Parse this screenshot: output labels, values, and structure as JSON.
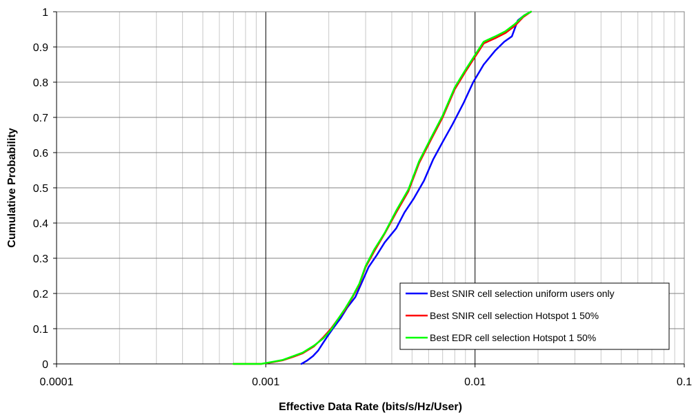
{
  "chart_data": {
    "type": "line",
    "xlabel": "Effective Data Rate (bits/s/Hz/User)",
    "ylabel": "Cumulative Probability",
    "xscale": "log",
    "xlim": [
      0.0001,
      0.1
    ],
    "ylim": [
      0,
      1
    ],
    "x_ticks": [
      "0.0001",
      "0.001",
      "0.01",
      "0.1"
    ],
    "y_ticks": [
      "0",
      "0.1",
      "0.2",
      "0.3",
      "0.4",
      "0.5",
      "0.6",
      "0.7",
      "0.8",
      "0.9",
      "1"
    ],
    "grid": true,
    "legend_position": "bottom-right",
    "series": [
      {
        "name": "Best SNIR cell selection uniform users only",
        "color": "#0000ff",
        "points": [
          [
            0.00148,
            0
          ],
          [
            0.00158,
            0.01
          ],
          [
            0.00168,
            0.022
          ],
          [
            0.00178,
            0.038
          ],
          [
            0.00188,
            0.06
          ],
          [
            0.00198,
            0.08
          ],
          [
            0.00212,
            0.105
          ],
          [
            0.00228,
            0.13
          ],
          [
            0.00245,
            0.16
          ],
          [
            0.00268,
            0.19
          ],
          [
            0.00292,
            0.24
          ],
          [
            0.0031,
            0.275
          ],
          [
            0.0034,
            0.31
          ],
          [
            0.0037,
            0.345
          ],
          [
            0.0042,
            0.385
          ],
          [
            0.0046,
            0.43
          ],
          [
            0.0051,
            0.47
          ],
          [
            0.0057,
            0.52
          ],
          [
            0.0063,
            0.58
          ],
          [
            0.007,
            0.63
          ],
          [
            0.0078,
            0.68
          ],
          [
            0.0088,
            0.74
          ],
          [
            0.0098,
            0.8
          ],
          [
            0.011,
            0.85
          ],
          [
            0.0125,
            0.89
          ],
          [
            0.0138,
            0.915
          ],
          [
            0.015,
            0.93
          ],
          [
            0.016,
            0.975
          ],
          [
            0.0172,
            0.99
          ],
          [
            0.0185,
            1.0
          ]
        ]
      },
      {
        "name": "Best SNIR cell selection Hotspot 1 50%",
        "color": "#ff0000",
        "points": [
          [
            0.0007,
            0
          ],
          [
            0.00095,
            0
          ],
          [
            0.00108,
            0.005
          ],
          [
            0.0012,
            0.01
          ],
          [
            0.00135,
            0.02
          ],
          [
            0.0015,
            0.03
          ],
          [
            0.0017,
            0.05
          ],
          [
            0.00188,
            0.075
          ],
          [
            0.00205,
            0.1
          ],
          [
            0.0022,
            0.125
          ],
          [
            0.0024,
            0.155
          ],
          [
            0.0026,
            0.19
          ],
          [
            0.0028,
            0.225
          ],
          [
            0.003,
            0.275
          ],
          [
            0.0033,
            0.32
          ],
          [
            0.0037,
            0.37
          ],
          [
            0.0042,
            0.43
          ],
          [
            0.0048,
            0.49
          ],
          [
            0.0054,
            0.57
          ],
          [
            0.0062,
            0.64
          ],
          [
            0.007,
            0.7
          ],
          [
            0.008,
            0.78
          ],
          [
            0.009,
            0.83
          ],
          [
            0.0097,
            0.86
          ],
          [
            0.011,
            0.91
          ],
          [
            0.0125,
            0.925
          ],
          [
            0.014,
            0.94
          ],
          [
            0.0155,
            0.96
          ],
          [
            0.017,
            0.985
          ],
          [
            0.0185,
            1.0
          ]
        ]
      },
      {
        "name": "Best EDR cell selection Hotspot 1 50%",
        "color": "#00ff00",
        "points": [
          [
            0.0007,
            0
          ],
          [
            0.00095,
            0
          ],
          [
            0.00108,
            0.006
          ],
          [
            0.0012,
            0.011
          ],
          [
            0.00135,
            0.022
          ],
          [
            0.0015,
            0.032
          ],
          [
            0.0017,
            0.052
          ],
          [
            0.00188,
            0.072
          ],
          [
            0.00205,
            0.097
          ],
          [
            0.0022,
            0.125
          ],
          [
            0.0024,
            0.158
          ],
          [
            0.0026,
            0.192
          ],
          [
            0.0028,
            0.228
          ],
          [
            0.003,
            0.278
          ],
          [
            0.0033,
            0.325
          ],
          [
            0.0037,
            0.372
          ],
          [
            0.0042,
            0.435
          ],
          [
            0.0048,
            0.495
          ],
          [
            0.0054,
            0.575
          ],
          [
            0.0062,
            0.645
          ],
          [
            0.007,
            0.705
          ],
          [
            0.008,
            0.785
          ],
          [
            0.009,
            0.835
          ],
          [
            0.0097,
            0.865
          ],
          [
            0.011,
            0.915
          ],
          [
            0.0125,
            0.93
          ],
          [
            0.014,
            0.945
          ],
          [
            0.0155,
            0.965
          ],
          [
            0.0172,
            0.99
          ],
          [
            0.0185,
            1.0
          ]
        ]
      }
    ]
  }
}
